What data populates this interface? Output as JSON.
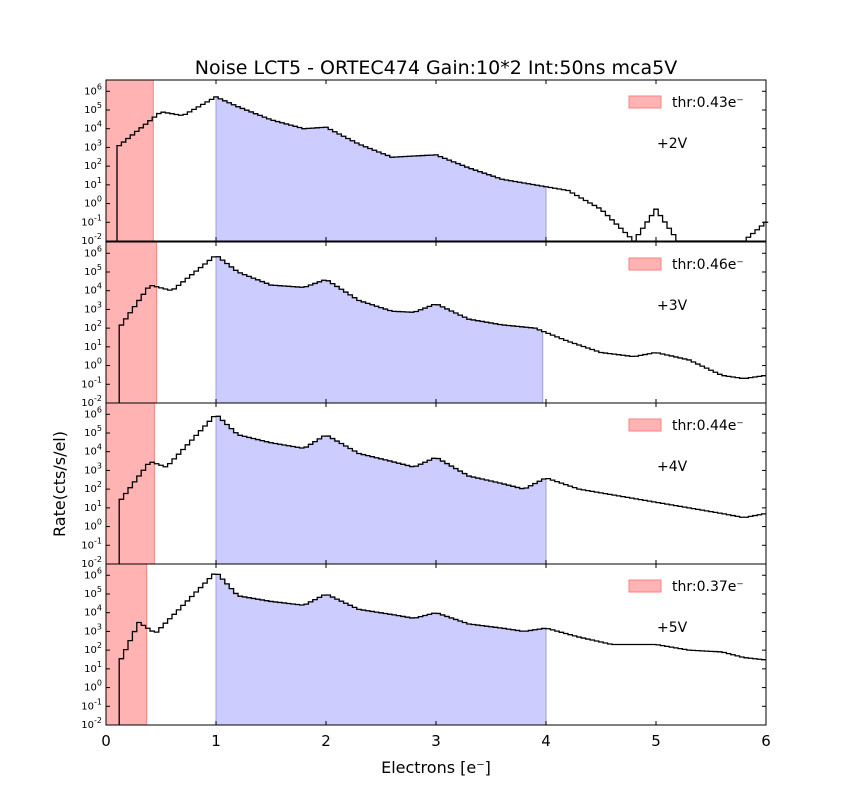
{
  "chart_data": {
    "type": "histogram-stack",
    "title": "Noise LCT5 - ORTEC474 Gain:10*2 Int:50ns mca5V",
    "xlabel": "Electrons [e⁻]",
    "ylabel": "Rate(cts/s/el)",
    "xlim": [
      0,
      6
    ],
    "ylim": [
      0.01,
      4000000
    ],
    "yscale": "log",
    "x_ticks": [
      "0",
      "1",
      "2",
      "3",
      "4",
      "5",
      "6"
    ],
    "y_ticks": [
      {
        "base": "10",
        "exp": "-2",
        "value": 0.01
      },
      {
        "base": "10",
        "exp": "-1",
        "value": 0.1
      },
      {
        "base": "10",
        "exp": "0",
        "value": 1
      },
      {
        "base": "10",
        "exp": "1",
        "value": 10
      },
      {
        "base": "10",
        "exp": "2",
        "value": 100
      },
      {
        "base": "10",
        "exp": "3",
        "value": 1000
      },
      {
        "base": "10",
        "exp": "4",
        "value": 10000
      },
      {
        "base": "10",
        "exp": "5",
        "value": 100000
      },
      {
        "base": "10",
        "exp": "6",
        "value": 1000000
      }
    ],
    "legend_placement": "top-right",
    "colors": {
      "threshold": "#ffb3b3",
      "signal_region": "#ccccff",
      "line": "#000000"
    },
    "panels": [
      {
        "voltage": "+2V",
        "legend": "thr:0.43e⁻",
        "threshold": 0.43,
        "shade_range": [
          1.0,
          4.0
        ],
        "x": [
          0.1,
          0.5,
          0.7,
          1.0,
          1.2,
          1.5,
          1.8,
          2.0,
          2.3,
          2.6,
          3.0,
          3.3,
          3.6,
          3.9,
          4.2,
          4.5,
          4.8,
          5.0,
          5.2,
          5.5,
          5.8,
          6.0
        ],
        "y": [
          1000,
          80000,
          50000,
          500000,
          150000,
          30000,
          10000,
          12000,
          1500,
          300,
          400,
          80,
          20,
          10,
          5,
          0.5,
          0.01,
          0.5,
          0.01,
          0.01,
          0.01,
          0.1
        ]
      },
      {
        "voltage": "+3V",
        "legend": "thr:0.46e⁻",
        "threshold": 0.46,
        "shade_range": [
          1.0,
          3.97
        ],
        "x": [
          0.12,
          0.4,
          0.6,
          1.0,
          1.2,
          1.5,
          1.8,
          2.0,
          2.3,
          2.6,
          2.8,
          3.0,
          3.3,
          3.6,
          3.9,
          4.2,
          4.5,
          4.8,
          5.0,
          5.3,
          5.6,
          5.8,
          6.0
        ],
        "y": [
          100,
          20000,
          10000,
          800000,
          100000,
          20000,
          15000,
          40000,
          3000,
          800,
          700,
          2000,
          300,
          150,
          100,
          20,
          5,
          3,
          5,
          2,
          0.3,
          0.2,
          0.3
        ]
      },
      {
        "voltage": "+4V",
        "legend": "thr:0.44e⁻",
        "threshold": 0.44,
        "shade_range": [
          1.0,
          4.0
        ],
        "x": [
          0.12,
          0.4,
          0.55,
          1.0,
          1.2,
          1.5,
          1.8,
          2.0,
          2.3,
          2.6,
          2.8,
          3.0,
          3.3,
          3.6,
          3.8,
          4.0,
          4.3,
          4.6,
          5.0,
          5.3,
          5.6,
          5.8,
          6.0
        ],
        "y": [
          20,
          3000,
          1500,
          1000000,
          80000,
          30000,
          15000,
          80000,
          8000,
          3000,
          1500,
          5000,
          500,
          200,
          100,
          400,
          100,
          50,
          20,
          10,
          5,
          3,
          5
        ]
      },
      {
        "voltage": "+5V",
        "legend": "thr:0.37e⁻",
        "threshold": 0.37,
        "shade_range": [
          1.0,
          4.0
        ],
        "x": [
          0.12,
          0.3,
          0.45,
          1.0,
          1.2,
          1.5,
          1.8,
          2.0,
          2.3,
          2.6,
          2.8,
          3.0,
          3.3,
          3.6,
          3.8,
          4.0,
          4.3,
          4.6,
          5.0,
          5.3,
          5.6,
          5.8,
          6.0
        ],
        "y": [
          20,
          3000,
          800,
          1500000,
          80000,
          40000,
          25000,
          100000,
          15000,
          8000,
          5000,
          10000,
          2500,
          1500,
          1000,
          1500,
          500,
          200,
          200,
          100,
          80,
          40,
          30
        ]
      }
    ]
  }
}
